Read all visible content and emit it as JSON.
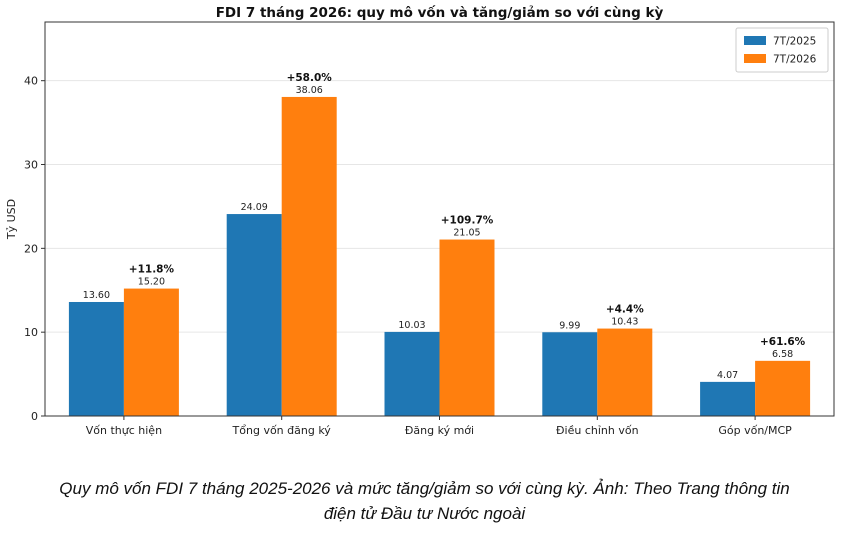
{
  "chart_data": {
    "type": "bar",
    "title": "FDI 7 tháng 2026: quy mô vốn và tăng/giảm so với cùng kỳ",
    "xlabel": "",
    "ylabel": "Tỷ USD",
    "ylim": [
      0,
      47
    ],
    "yticks": [
      0,
      10,
      20,
      30,
      40
    ],
    "grid": "y",
    "legend": "top-right",
    "categories": [
      "Vốn thực hiện",
      "Tổng vốn đăng ký",
      "Đăng ký mới",
      "Điều chỉnh vốn",
      "Góp vốn/MCP"
    ],
    "series": [
      {
        "name": "7T/2025",
        "color": "#1f77b4",
        "values": [
          13.6,
          24.09,
          10.03,
          9.99,
          4.07
        ],
        "labels": [
          "13.60",
          "24.09",
          "10.03",
          "9.99",
          "4.07"
        ]
      },
      {
        "name": "7T/2026",
        "color": "#ff7f0e",
        "values": [
          15.2,
          38.06,
          21.05,
          10.43,
          6.58
        ],
        "labels": [
          "15.20",
          "38.06",
          "21.05",
          "10.43",
          "6.58"
        ]
      }
    ],
    "changes": [
      "+11.8%",
      "+58.0%",
      "+109.7%",
      "+4.4%",
      "+61.6%"
    ]
  },
  "caption": {
    "line1": "Quy mô vốn FDI 7 tháng 2025-2026 và mức tăng/giảm so với cùng kỳ. Ảnh: Theo Trang thông tin",
    "line2": "điện tử Đầu tư Nước ngoài"
  }
}
